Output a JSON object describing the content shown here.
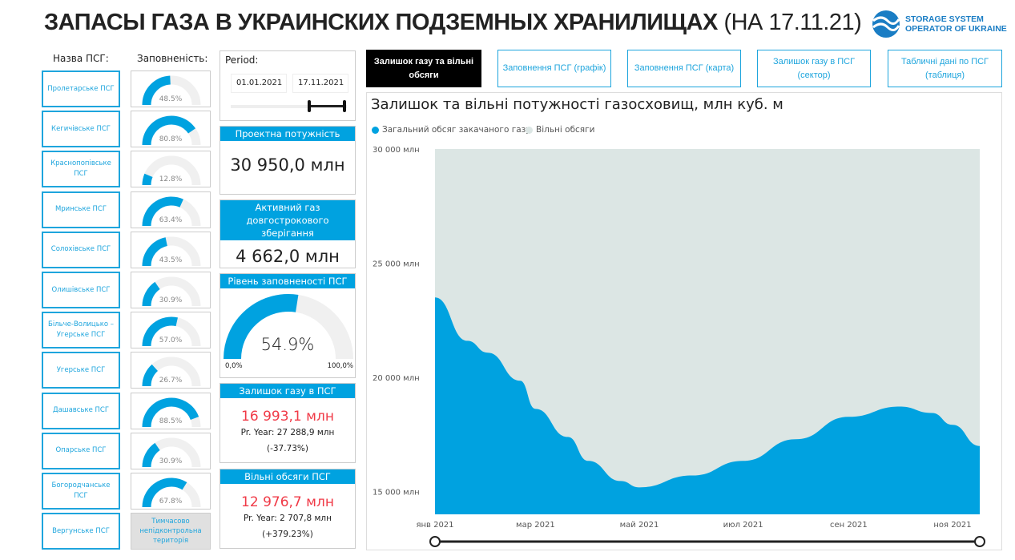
{
  "header": {
    "title": "ЗАПАСЫ ГАЗА В УКРАИНСКИХ ПОДЗЕМНЫХ ХРАНИЛИЩАХ",
    "date": "(НА 17.11.21)",
    "logo_text": "STORAGE SYSTEM OPERATOR OF UKRAINE",
    "logo_line1": "STORAGE SYSTEM",
    "logo_line2": "OPERATOR OF UKRAINE"
  },
  "columns": {
    "name": "Назва ПСГ:",
    "fill": "Заповненість:"
  },
  "storages": [
    {
      "name": "Пролетарське ПСГ",
      "fill": 48.5,
      "label": "48.5%"
    },
    {
      "name": "Кегичівське ПСГ",
      "fill": 80.8,
      "label": "80.8%"
    },
    {
      "name": "Краснопопівське ПСГ",
      "fill": 12.8,
      "label": "12.8%"
    },
    {
      "name": "Мринське ПСГ",
      "fill": 63.4,
      "label": "63.4%"
    },
    {
      "name": "Солохівське ПСГ",
      "fill": 43.5,
      "label": "43.5%"
    },
    {
      "name": "Олишівське ПСГ",
      "fill": 30.9,
      "label": "30.9%"
    },
    {
      "name": "Більче-Волицько – Угерське ПСГ",
      "fill": 57.0,
      "label": "57.0%"
    },
    {
      "name": "Угерське ПСГ",
      "fill": 26.7,
      "label": "26.7%"
    },
    {
      "name": "Дашавське ПСГ",
      "fill": 88.5,
      "label": "88.5%"
    },
    {
      "name": "Опарське ПСГ",
      "fill": 30.9,
      "label": "30.9%"
    },
    {
      "name": "Богородчанське ПСГ",
      "fill": 67.8,
      "label": "67.8%"
    },
    {
      "name": "Вергунське ПСГ",
      "fill": null,
      "label": "Тимчасово непідконтрольна територія"
    }
  ],
  "period": {
    "label": "Period:",
    "start": "01.01.2021",
    "end": "17.11.2021"
  },
  "cards": {
    "design": {
      "title": "Проектна потужність",
      "value": "30 950,0 млн"
    },
    "active": {
      "title": "Активний газ довгострокового зберігання",
      "value": "4 662,0 млн"
    },
    "level": {
      "title": "Рівень заповненості ПСГ",
      "value": "54.9%",
      "fraction": 54.9,
      "min": "0,0%",
      "max": "100,0%"
    },
    "remain": {
      "title": "Залишок газу в ПСГ",
      "value": "16 993,1 млн",
      "prev": "Pr. Year: 27 288,9 млн",
      "change": "(-37.73%)"
    },
    "free": {
      "title": "Вільні обсяги ПСГ",
      "value": "12 976,7 млн",
      "prev": "Pr. Year: 2 707,8 млн",
      "change": "(+379.23%)"
    }
  },
  "tabs": [
    {
      "label": "Залишок газу та вільні обсяги",
      "active": true
    },
    {
      "label": "Заповнення ПСГ (графік)"
    },
    {
      "label": "Заповнення ПСГ (карта)"
    },
    {
      "label": "Залишок газу в ПСГ (сектор)"
    },
    {
      "label": "Табличні дані по ПСГ (таблиця)"
    }
  ],
  "colors": {
    "accent": "#00a2e0",
    "gauge_bg": "#f0f0f0",
    "free": "#dce6e4",
    "red": "#f03a47"
  },
  "chart_data": {
    "type": "area",
    "title": "Залишок та вільні потужності газосховищ, млн куб. м",
    "series": [
      {
        "name": "Загальний обсяг закачаного газу",
        "color": "#00a2e0"
      },
      {
        "name": "Вільні обсяги",
        "color": "#dce6e4"
      }
    ],
    "capacity": 30000,
    "x": [
      "2021-01-01",
      "2021-01-20",
      "2021-02-01",
      "2021-02-20",
      "2021-03-01",
      "2021-03-20",
      "2021-04-01",
      "2021-04-20",
      "2021-05-01",
      "2021-06-01",
      "2021-07-01",
      "2021-08-01",
      "2021-09-01",
      "2021-10-01",
      "2021-10-20",
      "2021-11-01",
      "2021-11-17"
    ],
    "values": [
      23500,
      21600,
      21080,
      19850,
      18620,
      17390,
      16340,
      15460,
      15180,
      15700,
      16340,
      17290,
      18270,
      18720,
      18440,
      17920,
      16993
    ],
    "ylim": [
      14000,
      30000
    ],
    "yticks": [
      15000,
      20000,
      25000,
      30000
    ],
    "ytick_labels": [
      "15 000 млн",
      "20 000 млн",
      "25 000 млн",
      "30 000 млн"
    ],
    "xticks": [
      "2021-01-01",
      "2021-03-01",
      "2021-05-01",
      "2021-07-01",
      "2021-09-01",
      "2021-11-01"
    ],
    "xtick_labels": [
      "янв 2021",
      "мар 2021",
      "май 2021",
      "июл 2021",
      "сен 2021",
      "ноя 2021"
    ],
    "legend": "top-left",
    "grid": false
  }
}
